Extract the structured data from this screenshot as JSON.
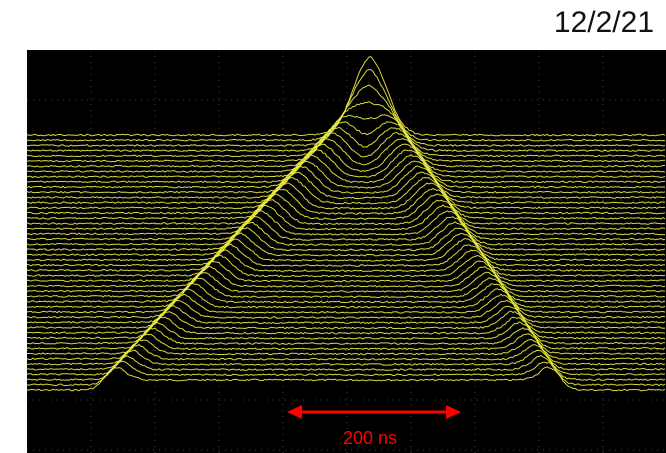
{
  "header": {
    "date": "12/2/21"
  },
  "scope": {
    "scale_label": "200 ns"
  }
}
